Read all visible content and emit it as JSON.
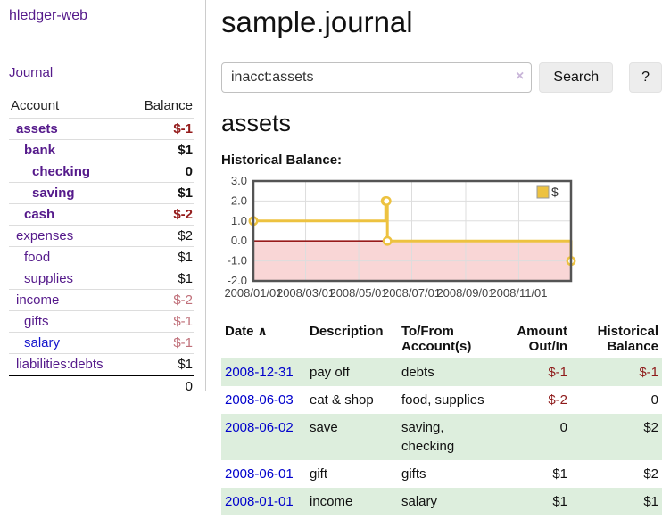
{
  "colors": {
    "link_purple": "#551a8b",
    "link_blue": "#0000cc",
    "negative_bold_red": "#941c1c",
    "negative_muted_red": "#c0707a",
    "negative_table_red": "#8e1a1a",
    "row_green": "#ddeedd",
    "chart_gold": "#edc240",
    "chart_negative_fill": "#f9d6d6",
    "chart_zero_line": "#981b1b"
  },
  "sidebar": {
    "brand": "hledger-web",
    "journal_link": "Journal",
    "columns": {
      "account": "Account",
      "balance": "Balance"
    },
    "accounts": [
      {
        "name": "assets",
        "balance": "$-1"
      },
      {
        "name": "bank",
        "balance": "$1"
      },
      {
        "name": "checking",
        "balance": "0"
      },
      {
        "name": "saving",
        "balance": "$1"
      },
      {
        "name": "cash",
        "balance": "$-2"
      },
      {
        "name": "expenses",
        "balance": "$2"
      },
      {
        "name": "food",
        "balance": "$1"
      },
      {
        "name": "supplies",
        "balance": "$1"
      },
      {
        "name": "income",
        "balance": "$-2"
      },
      {
        "name": "gifts",
        "balance": "$-1"
      },
      {
        "name": "salary",
        "balance": "$-1"
      },
      {
        "name": "liabilities:debts",
        "balance": "$1"
      }
    ],
    "total": "0"
  },
  "main": {
    "title": "sample.journal",
    "search": {
      "value": "inacct:assets",
      "clear_icon": "×",
      "search_button": "Search",
      "help_button": "?"
    },
    "account_heading": "assets",
    "chart_label": "Historical Balance:"
  },
  "chart_data": {
    "type": "line",
    "step": true,
    "title": "Historical Balance",
    "series": [
      {
        "name": "$",
        "color": "#edc240",
        "points": [
          [
            "2008-01-01",
            1
          ],
          [
            "2008-06-01",
            2
          ],
          [
            "2008-06-02",
            2
          ],
          [
            "2008-06-03",
            0
          ],
          [
            "2008-12-31",
            -1
          ]
        ]
      }
    ],
    "xlim": [
      "2008-01-01",
      "2008-12-31"
    ],
    "ylim": [
      -2,
      3
    ],
    "x_ticks": [
      "2008/01/01",
      "2008/03/01",
      "2008/05/01",
      "2008/07/01",
      "2008/09/01",
      "2008/11/01"
    ],
    "y_ticks": [
      "3.0",
      "2.0",
      "1.0",
      "0.0",
      "-1.0",
      "-2.0"
    ],
    "grid": true,
    "legend": "$",
    "legend_position": "top-right",
    "negative_region_fill": "#f9d6d6",
    "zero_line_color": "#981b1b"
  },
  "register": {
    "columns": {
      "date": "Date",
      "sort_icon": "∧",
      "description": "Description",
      "accounts": "To/From Account(s)",
      "amount": "Amount Out/In",
      "balance": "Historical Balance"
    },
    "rows": [
      {
        "date": "2008-12-31",
        "description": "pay off",
        "accounts": "debts",
        "amount": "$-1",
        "balance": "$-1"
      },
      {
        "date": "2008-06-03",
        "description": "eat & shop",
        "accounts": "food, supplies",
        "amount": "$-2",
        "balance": "0"
      },
      {
        "date": "2008-06-02",
        "description": "save",
        "accounts": "saving, checking",
        "amount": "0",
        "balance": "$2"
      },
      {
        "date": "2008-06-01",
        "description": "gift",
        "accounts": "gifts",
        "amount": "$1",
        "balance": "$2"
      },
      {
        "date": "2008-01-01",
        "description": "income",
        "accounts": "salary",
        "amount": "$1",
        "balance": "$1"
      }
    ]
  }
}
